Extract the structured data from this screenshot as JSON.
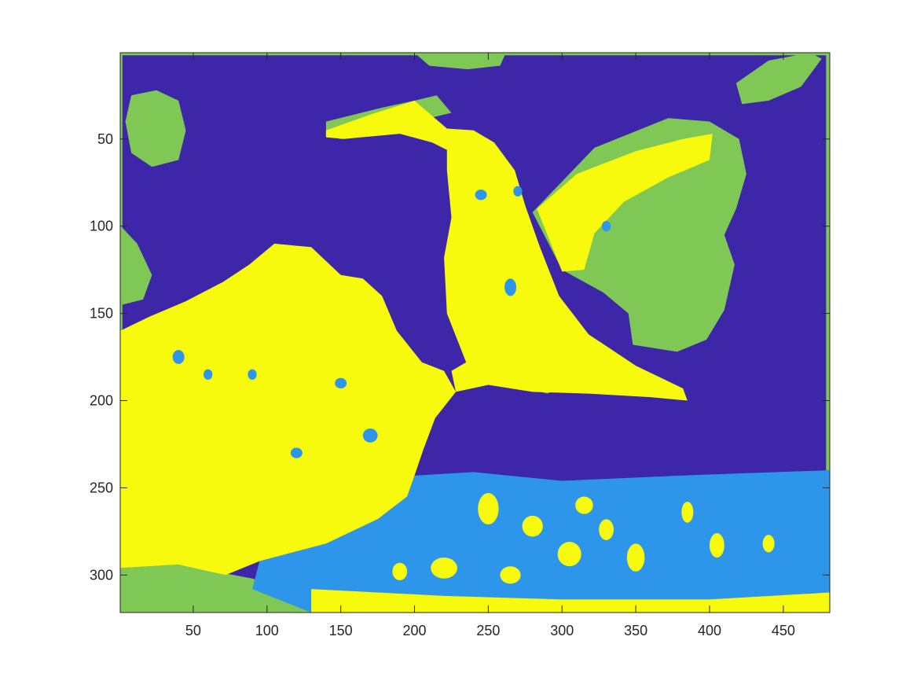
{
  "chart_data": {
    "type": "heatmap",
    "title": "",
    "xlabel": "",
    "ylabel": "",
    "xlim": [
      0.5,
      481.5
    ],
    "ylim": [
      0.5,
      321.5
    ],
    "y_direction": "reverse",
    "grid": false,
    "legend": "none",
    "colormap": "parula",
    "levels": [
      {
        "index": 1,
        "color": "#3e26a8"
      },
      {
        "index": 2,
        "color": "#2e96ea"
      },
      {
        "index": 3,
        "color": "#7fc855"
      },
      {
        "index": 4,
        "color": "#f8fa0d"
      }
    ],
    "x_ticks": [
      50,
      100,
      150,
      200,
      250,
      300,
      350,
      400,
      450
    ],
    "x_tick_labels": [
      "50",
      "100",
      "150",
      "200",
      "250",
      "300",
      "350",
      "400",
      "450"
    ],
    "y_ticks": [
      50,
      100,
      150,
      200,
      250,
      300
    ],
    "y_tick_labels": [
      "50",
      "100",
      "150",
      "200",
      "250",
      "300"
    ],
    "regions": [
      {
        "level": 1,
        "label": "background"
      },
      {
        "level": 3,
        "label": "foliage / edges"
      },
      {
        "level": 4,
        "label": "bird / flower"
      },
      {
        "level": 2,
        "label": "lower band"
      }
    ]
  }
}
